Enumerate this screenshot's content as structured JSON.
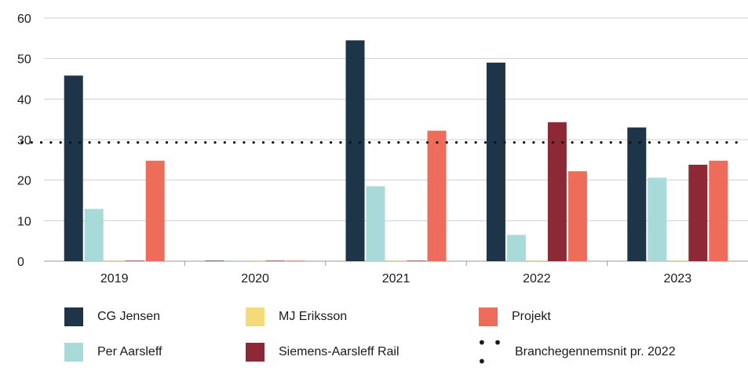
{
  "chart_data": {
    "type": "bar",
    "categories": [
      "2019",
      "2020",
      "2021",
      "2022",
      "2023"
    ],
    "series": [
      {
        "name": "CG Jensen",
        "color": "#1e3448",
        "values": [
          45.8,
          0,
          54.5,
          49.0,
          33.0
        ]
      },
      {
        "name": "Per Aarsleff",
        "color": "#a8dad9",
        "values": [
          12.9,
          0,
          18.5,
          6.5,
          20.6
        ]
      },
      {
        "name": "MJ Eriksson",
        "color": "#f5da7a",
        "values": [
          0,
          0,
          0,
          0,
          0
        ]
      },
      {
        "name": "Siemens-Aarsleff Rail",
        "color": "#8d2935",
        "values": [
          0,
          0,
          0,
          34.3,
          23.8
        ]
      },
      {
        "name": "Projekt",
        "color": "#ee6d5a",
        "values": [
          24.8,
          0,
          32.2,
          22.2,
          24.8
        ]
      }
    ],
    "reference_line": {
      "name": "Branchegennemsnit pr. 2022",
      "value": 29.3,
      "style": "dotted"
    },
    "y_ticks": [
      "0",
      "10",
      "20",
      "30",
      "40",
      "50",
      "60"
    ],
    "ylim": [
      0,
      60
    ],
    "grid": true,
    "legend_position": "bottom"
  },
  "legend": {
    "cg_jensen": "CG Jensen",
    "mj_eriksson": "MJ Eriksson",
    "projekt": "Projekt",
    "per_aarsleff": "Per Aarsleff",
    "siemens": "Siemens-Aarsleff Rail",
    "branche": "Branchegennemsnit pr. 2022",
    "dots": "• • •"
  }
}
